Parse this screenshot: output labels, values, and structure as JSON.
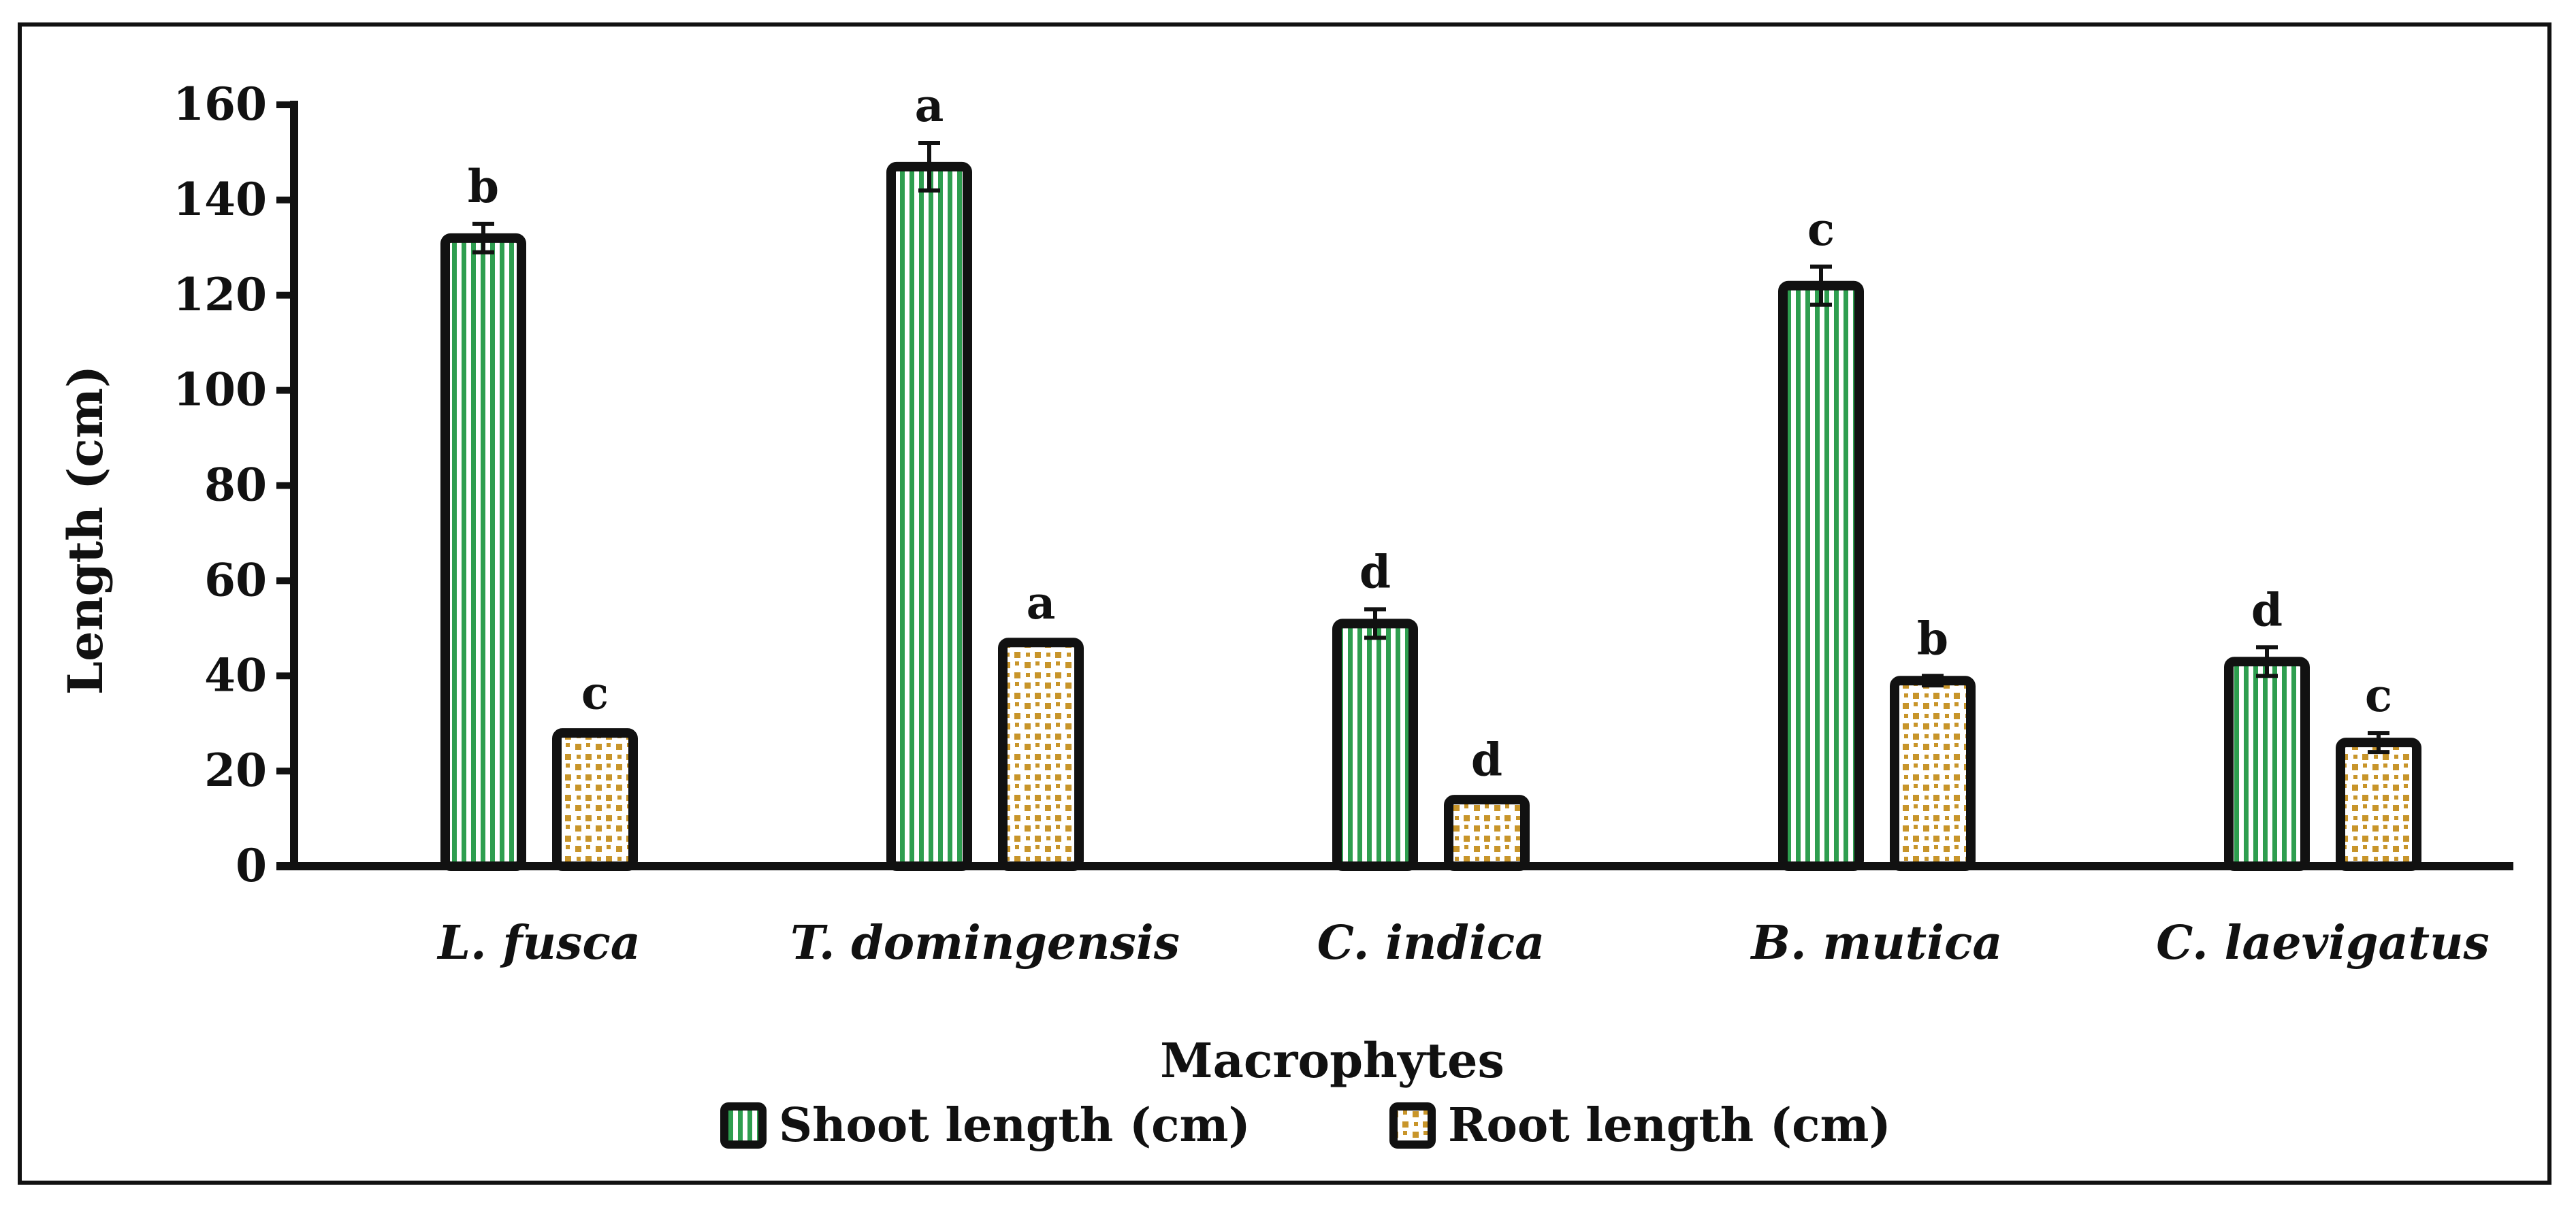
{
  "chart_data": {
    "type": "bar",
    "title": "",
    "xlabel": "Macrophytes",
    "ylabel": "Length (cm)",
    "ylim": [
      0,
      160
    ],
    "yticks": [
      "0",
      "20",
      "40",
      "60",
      "80",
      "100",
      "120",
      "140",
      "160"
    ],
    "categories": [
      "L. fusca",
      "T. domingensis",
      "C. indica",
      "B. mutica",
      "C. laevigatus"
    ],
    "series": [
      {
        "name": "Shoot length (cm)",
        "color": "#2e9e4f",
        "pattern": "vertical-stripes",
        "values": [
          132,
          147,
          51,
          122,
          43
        ],
        "errors": [
          3,
          5,
          3,
          4,
          3
        ],
        "letters": [
          "b",
          "a",
          "d",
          "c",
          "d"
        ]
      },
      {
        "name": "Root length (cm)",
        "color": "#c8952a",
        "pattern": "dots",
        "values": [
          28,
          47,
          14,
          39,
          26
        ],
        "errors": [
          0.5,
          0.5,
          0.5,
          1,
          2
        ],
        "letters": [
          "c",
          "a",
          "d",
          "b",
          "c"
        ]
      }
    ],
    "legend": "bottom-center"
  }
}
